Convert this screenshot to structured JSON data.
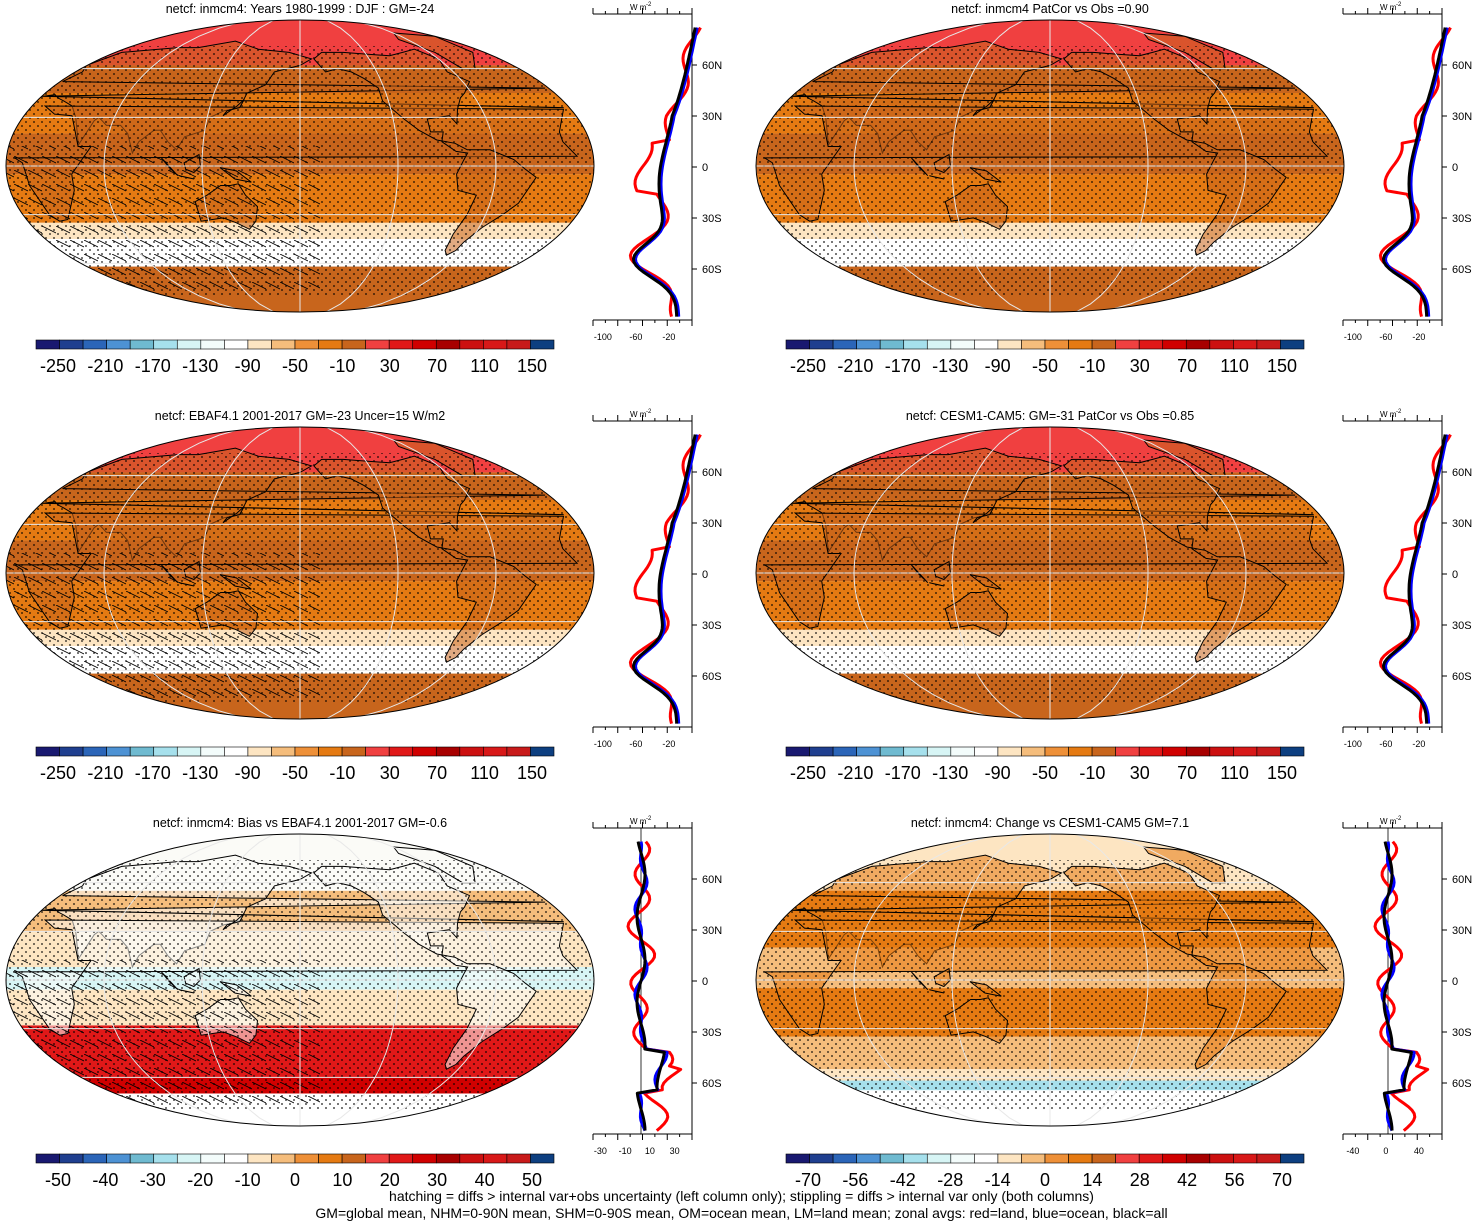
{
  "colors": {
    "seq_palette": [
      "#191970",
      "#1f3f8f",
      "#2b65b8",
      "#4d92d4",
      "#6fbad0",
      "#a6e0ec",
      "#d7f5f5",
      "#f3fcfb",
      "#ffffff",
      "#fde5c2",
      "#f5bd7c",
      "#ee9038",
      "#e57a12",
      "#c8651c",
      "#f04040",
      "#e01818",
      "#d00000",
      "#a80000",
      "#cc1010",
      "#d81818",
      "#c81a1a",
      "#0d3f80"
    ],
    "map_base": "#e47a12",
    "zonal_land": "#ff0000",
    "zonal_ocean": "#0000ff",
    "zonal_all": "#000000"
  },
  "panels": [
    {
      "id": "p1",
      "title": "netcf: inmcm4: Years 1980-1999 : DJF : GM=-24",
      "colorbar_labels": [
        "-250",
        "-210",
        "-170",
        "-130",
        "-90",
        "-50",
        "-10",
        "30",
        "70",
        "110",
        "150"
      ],
      "zonal_xticks": [
        "-100",
        "-60",
        "-20"
      ],
      "zonal_units": "W m",
      "zonal_lat_labels": [
        "60N",
        "30N",
        "0",
        "30S",
        "60S"
      ]
    },
    {
      "id": "p2",
      "title": "netcf: inmcm4 PatCor vs Obs =0.90",
      "colorbar_labels": [
        "-250",
        "-210",
        "-170",
        "-130",
        "-90",
        "-50",
        "-10",
        "30",
        "70",
        "110",
        "150"
      ],
      "zonal_xticks": [
        "-100",
        "-60",
        "-20"
      ],
      "zonal_units": "W m",
      "zonal_lat_labels": [
        "60N",
        "30N",
        "0",
        "30S",
        "60S"
      ]
    },
    {
      "id": "p3",
      "title": "netcf: EBAF4.1 2001-2017 GM=-23 Uncer=15 W/m2",
      "colorbar_labels": [
        "-250",
        "-210",
        "-170",
        "-130",
        "-90",
        "-50",
        "-10",
        "30",
        "70",
        "110",
        "150"
      ],
      "zonal_xticks": [
        "-100",
        "-60",
        "-20"
      ],
      "zonal_units": "W m",
      "zonal_lat_labels": [
        "60N",
        "30N",
        "0",
        "30S",
        "60S"
      ]
    },
    {
      "id": "p4",
      "title": "netcf: CESM1-CAM5: GM=-31 PatCor vs Obs =0.85",
      "colorbar_labels": [
        "-250",
        "-210",
        "-170",
        "-130",
        "-90",
        "-50",
        "-10",
        "30",
        "70",
        "110",
        "150"
      ],
      "zonal_xticks": [
        "-100",
        "-60",
        "-20"
      ],
      "zonal_units": "W m",
      "zonal_lat_labels": [
        "60N",
        "30N",
        "0",
        "30S",
        "60S"
      ]
    },
    {
      "id": "p5",
      "title": "netcf: inmcm4: Bias vs EBAF4.1 2001-2017 GM=-0.6",
      "colorbar_labels": [
        "-50",
        "-40",
        "-30",
        "-20",
        "-10",
        "0",
        "10",
        "20",
        "30",
        "40",
        "50"
      ],
      "zonal_xticks": [
        "-30",
        "-10",
        "10",
        "30"
      ],
      "zonal_units": "W m",
      "zonal_lat_labels": [
        "60N",
        "30N",
        "0",
        "30S",
        "60S"
      ]
    },
    {
      "id": "p6",
      "title": "netcf: inmcm4: Change vs CESM1-CAM5 GM=7.1",
      "colorbar_labels": [
        "-70",
        "-56",
        "-42",
        "-28",
        "-14",
        "0",
        "14",
        "28",
        "42",
        "56",
        "70"
      ],
      "zonal_xticks": [
        "-40",
        "0",
        "40"
      ],
      "zonal_units": "W m",
      "zonal_lat_labels": [
        "60N",
        "30N",
        "0",
        "30S",
        "60S"
      ]
    }
  ],
  "footer": {
    "line1": "hatching = diffs > internal var+obs uncertainty (left column only); stippling = diffs > internal var only (both columns)",
    "line2": "GM=global mean, NHM=0-90N mean, SHM=0-90S mean, OM=ocean mean, LM=land mean; zonal avgs: red=land, blue=ocean, black=all"
  }
}
